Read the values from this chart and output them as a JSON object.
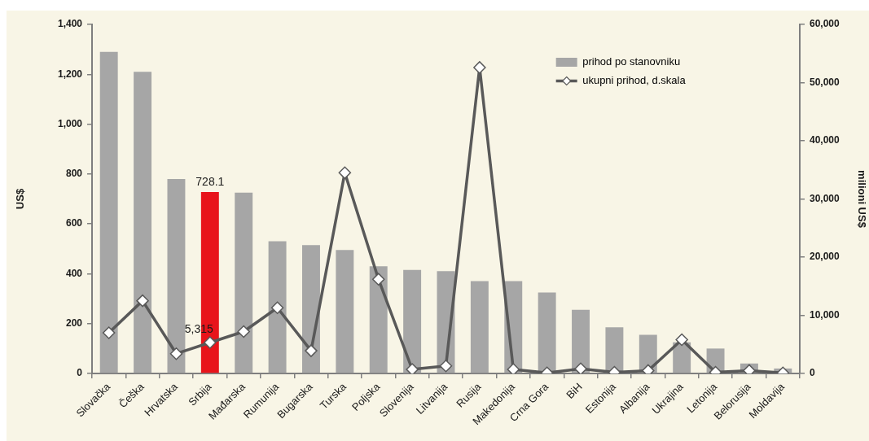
{
  "chart_data": {
    "type": "bar",
    "categories": [
      "Slovačka",
      "Češka",
      "Hrvatska",
      "Srbija",
      "Mađarska",
      "Rumunija",
      "Bugarska",
      "Turska",
      "Poljska",
      "Slovenija",
      "Litvanija",
      "Rusija",
      "Makedonija",
      "Crna Gora",
      "BiH",
      "Estonija",
      "Albanija",
      "Ukrajina",
      "Letonija",
      "Belorusija",
      "Moldavija"
    ],
    "series": [
      {
        "name": "prihod po stanovniku",
        "type": "bar",
        "color": "#a6a6a6",
        "colors": [
          "#a6a6a6",
          "#a6a6a6",
          "#a6a6a6",
          "#e8141b",
          "#a6a6a6",
          "#a6a6a6",
          "#a6a6a6",
          "#a6a6a6",
          "#a6a6a6",
          "#a6a6a6",
          "#a6a6a6",
          "#a6a6a6",
          "#a6a6a6",
          "#a6a6a6",
          "#a6a6a6",
          "#a6a6a6",
          "#a6a6a6",
          "#a6a6a6",
          "#a6a6a6",
          "#a6a6a6",
          "#a6a6a6"
        ],
        "values": [
          1290,
          1210,
          780,
          728.1,
          725,
          530,
          515,
          495,
          430,
          415,
          410,
          370,
          370,
          325,
          255,
          185,
          155,
          125,
          100,
          40,
          20
        ],
        "value_labels": [
          null,
          null,
          null,
          "728.1",
          null,
          null,
          null,
          null,
          null,
          null,
          null,
          null,
          null,
          null,
          null,
          null,
          null,
          null,
          null,
          null,
          null
        ]
      },
      {
        "name": "ukupni prihod, d.skala",
        "type": "line",
        "axis": "y2",
        "color": "#595959",
        "values": [
          7000,
          12500,
          3400,
          5315,
          7200,
          11300,
          3900,
          34500,
          16200,
          700,
          1300,
          52600,
          700,
          100,
          800,
          200,
          500,
          5800,
          200,
          500,
          100
        ],
        "value_labels": [
          null,
          null,
          null,
          "5,315",
          null,
          null,
          null,
          null,
          null,
          null,
          null,
          null,
          null,
          null,
          null,
          null,
          null,
          null,
          null,
          null,
          null
        ]
      }
    ],
    "ylabel": "US$",
    "y2label": "milioni US$",
    "ylim": [
      0,
      1400
    ],
    "yticks": [
      0,
      200,
      400,
      600,
      800,
      {
        "value": 1000,
        "label": "1,000"
      },
      {
        "value": 1200,
        "label": "1,200"
      },
      {
        "value": 1400,
        "label": "1,400"
      }
    ],
    "y2lim": [
      0,
      60000
    ],
    "y2ticks": [
      0,
      {
        "value": 10000,
        "label": "10,000"
      },
      {
        "value": 20000,
        "label": "20,000"
      },
      {
        "value": 30000,
        "label": "30,000"
      },
      {
        "value": 40000,
        "label": "40,000"
      },
      {
        "value": 50000,
        "label": "50,000"
      },
      {
        "value": 60000,
        "label": "60,000"
      }
    ],
    "legend": "top right",
    "grid": false,
    "marker": "diamond"
  }
}
